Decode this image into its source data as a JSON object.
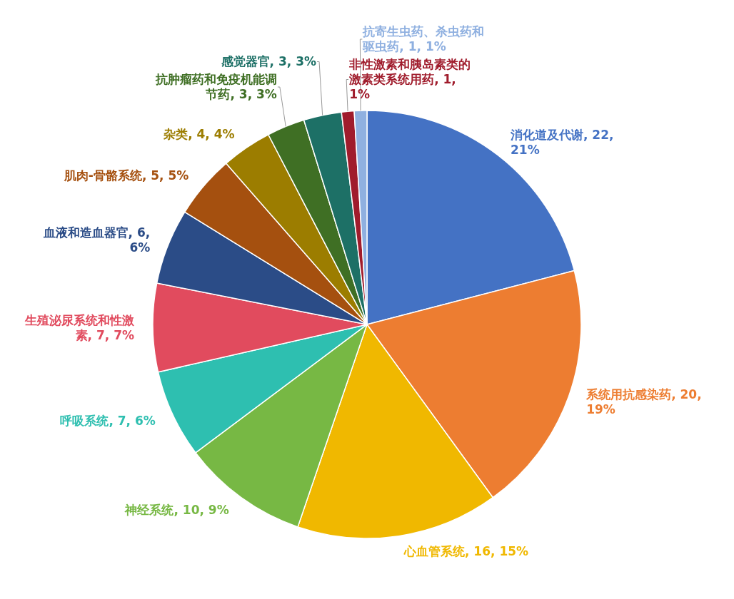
{
  "chart_data": {
    "type": "pie",
    "categories": [
      "消化道及代谢",
      "系统用抗感染药",
      "心血管系统",
      "神经系统",
      "呼吸系统",
      "生殖泌尿系统和性激素",
      "血液和造血器官",
      "肌肉-骨骼系统",
      "杂类",
      "抗肿瘤药和免疫机能调节药",
      "感觉器官",
      "非性激素和胰岛素类的激素类系统用药",
      "抗寄生虫药、杀虫药和驱虫药"
    ],
    "values": [
      22,
      20,
      16,
      10,
      7,
      7,
      6,
      5,
      4,
      3,
      3,
      1,
      1
    ],
    "value_labels": [
      "22, 21%",
      "20, 19%",
      "16, 15%",
      "10, 9%",
      "7, 6%",
      "7, 7%",
      "6, 6%",
      "5, 5%",
      "4, 4%",
      "3, 3%",
      "3, 3%",
      "1, 1%",
      "1, 1%"
    ],
    "colors": [
      "#4472c4",
      "#ed7d31",
      "#f0b800",
      "#77b844",
      "#2ebfb0",
      "#e14b5e",
      "#2b4c87",
      "#a5500f",
      "#9c7d00",
      "#3f6f24",
      "#1d7066",
      "#a01c2c",
      "#8fb0e0"
    ]
  }
}
